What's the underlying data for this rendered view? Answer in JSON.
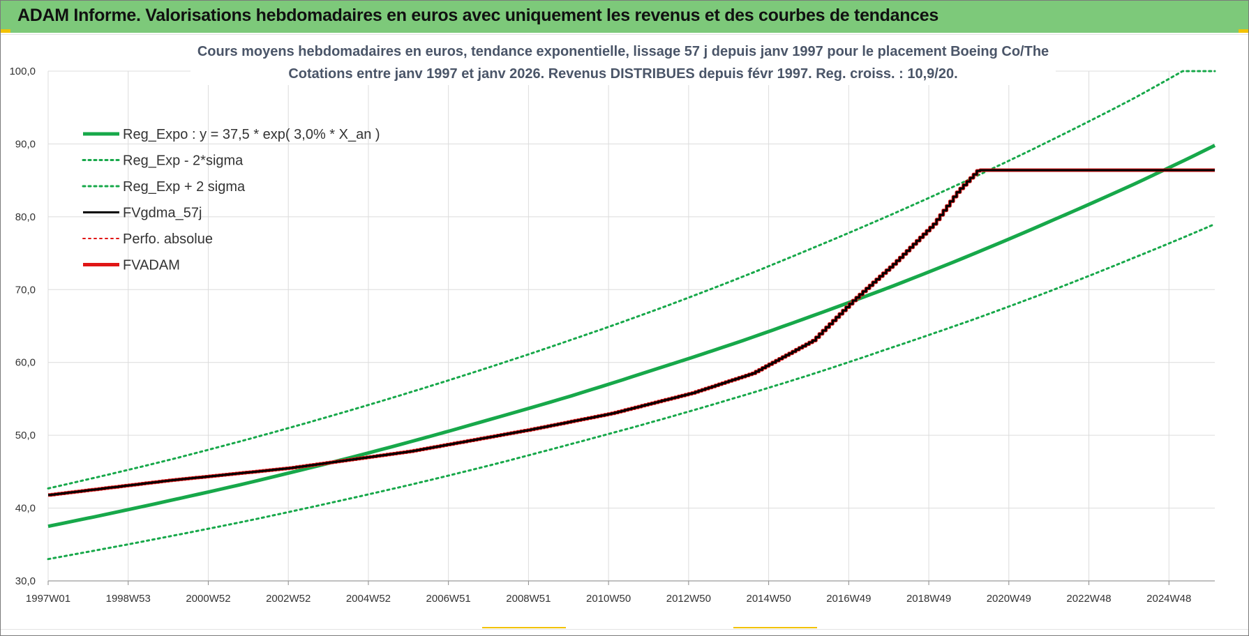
{
  "banner": {
    "title": "ADAM Informe. Valorisations hebdomadaires en euros avec uniquement les revenus et des courbes de tendances"
  },
  "colors": {
    "banner": "#7dc97a",
    "green": "#17a84a",
    "red": "#e01515",
    "black": "#000000",
    "accent_yellow": "#f2c200"
  },
  "chart_data": {
    "type": "line",
    "title_lines": [
      "Cours moyens hebdomadaires en euros, tendance exponentielle, lissage 57 j depuis janv 1997 pour le placement Boeing Co/The",
      "Cotations entre janv 1997 et janv 2026. Revenus DISTRIBUES depuis févr 1997. Reg. croiss. : 10,9/20."
    ],
    "x_ticks": [
      "1997W01",
      "1998W53",
      "2000W52",
      "2002W52",
      "2004W52",
      "2006W51",
      "2008W51",
      "2010W50",
      "2012W50",
      "2014W50",
      "2016W49",
      "2018W49",
      "2020W49",
      "2022W48",
      "2024W48"
    ],
    "x_range": [
      1997.0,
      2026.0
    ],
    "y_range": [
      30,
      100
    ],
    "y_ticks": [
      "30,0",
      "40,0",
      "50,0",
      "60,0",
      "70,0",
      "80,0",
      "90,0",
      "100,0"
    ],
    "grid": true,
    "legend_position": "top-left",
    "legend": [
      {
        "label": "Reg_Expo : y = 37,5 * exp( 3,0% *  X_an )",
        "color": "#17a84a",
        "style": "solid",
        "width": 5
      },
      {
        "label": "Reg_Exp - 2*sigma",
        "color": "#17a84a",
        "style": "dotted",
        "width": 3
      },
      {
        "label": "Reg_Exp + 2 sigma",
        "color": "#17a84a",
        "style": "dotted",
        "width": 3
      },
      {
        "label": "FVgdma_57j",
        "color": "#000000",
        "style": "solid",
        "width": 3
      },
      {
        "label": "Perfo. absolue",
        "color": "#e01515",
        "style": "dotted",
        "width": 2
      },
      {
        "label": "FVADAM",
        "color": "#e01515",
        "style": "solid",
        "width": 5
      }
    ],
    "series": [
      {
        "name": "Reg_Expo : y = 37,5 * exp( 3,0% *  X_an )",
        "color": "#17a84a",
        "style": "solid",
        "width": 5,
        "x": [
          1997,
          2000,
          2002,
          2004,
          2006,
          2008,
          2010,
          2012,
          2014,
          2016,
          2018,
          2020,
          2022,
          2024,
          2026
        ],
        "y": [
          37.5,
          41.0,
          43.5,
          46.2,
          49.1,
          52.2,
          55.4,
          58.9,
          62.5,
          66.4,
          70.5,
          74.9,
          79.6,
          84.5,
          89.8
        ]
      },
      {
        "name": "Reg_Exp - 2*sigma",
        "color": "#17a84a",
        "style": "dotted",
        "width": 3,
        "x": [
          1997,
          2000,
          2002,
          2004,
          2006,
          2008,
          2010,
          2012,
          2014,
          2016,
          2018,
          2020,
          2022,
          2024,
          2026
        ],
        "y": [
          33.0,
          36.1,
          38.3,
          40.7,
          43.2,
          45.9,
          48.8,
          51.8,
          55.0,
          58.4,
          62.1,
          65.9,
          70.0,
          74.4,
          79.0
        ]
      },
      {
        "name": "Reg_Exp + 2 sigma",
        "color": "#17a84a",
        "style": "dotted",
        "width": 3,
        "x": [
          1997,
          2000,
          2002,
          2004,
          2006,
          2008,
          2010,
          2012,
          2014,
          2016,
          2018,
          2020,
          2022,
          2024,
          2025.2,
          2026
        ],
        "y": [
          42.7,
          46.6,
          49.5,
          52.6,
          55.9,
          59.4,
          63.1,
          67.0,
          71.2,
          75.7,
          80.4,
          85.4,
          90.7,
          96.3,
          100.0,
          100.0
        ]
      },
      {
        "name": "FVgdma_57j",
        "color": "#000000",
        "style": "solid",
        "width": 3,
        "x": [
          1997,
          2000,
          2003,
          2006,
          2009,
          2011,
          2013,
          2014.5,
          2016,
          2017,
          2018,
          2019,
          2019.6,
          2020.1,
          2026
        ],
        "y": [
          41.8,
          43.8,
          45.5,
          47.8,
          50.8,
          53.0,
          55.8,
          58.5,
          63.0,
          68.5,
          73.5,
          79.0,
          83.5,
          86.4,
          86.4
        ]
      },
      {
        "name": "FVADAM",
        "color": "#e01515",
        "style": "solid",
        "width": 5,
        "x": [
          1997,
          2000,
          2003,
          2006,
          2009,
          2011,
          2013,
          2014.5,
          2016,
          2017,
          2018,
          2019,
          2019.6,
          2020.1,
          2026
        ],
        "y": [
          41.8,
          43.8,
          45.5,
          47.8,
          50.8,
          53.0,
          55.8,
          58.5,
          63.0,
          68.5,
          73.5,
          79.0,
          83.5,
          86.4,
          86.4
        ]
      }
    ]
  }
}
